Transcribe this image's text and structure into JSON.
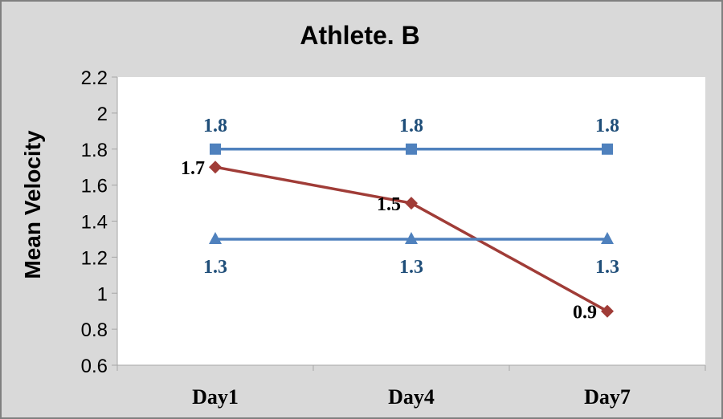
{
  "chart_data": {
    "type": "line",
    "title": "Athlete. B",
    "xlabel": "",
    "ylabel": "Mean Velocity",
    "categories": [
      "Day1",
      "Day4",
      "Day7"
    ],
    "ylim": [
      0.6,
      2.2
    ],
    "yticks": [
      "2.2",
      "2",
      "1.8",
      "1.6",
      "1.4",
      "1.2",
      "1",
      "0.8",
      "0.6"
    ],
    "grid": false,
    "legend": "none",
    "series": [
      {
        "values": [
          1.8,
          1.8,
          1.8
        ],
        "labels": [
          "1.8",
          "1.8",
          "1.8"
        ],
        "marker": "square",
        "color": "#4F81BD",
        "label_color": "#1F4E79",
        "label_position": "above"
      },
      {
        "values": [
          1.7,
          1.5,
          0.9
        ],
        "labels": [
          "1.7",
          "1.5",
          "0.9"
        ],
        "marker": "diamond",
        "color": "#A03C37",
        "label_color": "#000000",
        "label_position": "left"
      },
      {
        "values": [
          1.3,
          1.3,
          1.3
        ],
        "labels": [
          "1.3",
          "1.3",
          "1.3"
        ],
        "marker": "triangle",
        "color": "#4F81BD",
        "label_color": "#1F4E79",
        "label_position": "below"
      }
    ]
  },
  "colors": {
    "chart_area": "#D9D9D9",
    "plot_area": "#FFFFFF",
    "border": "#808080"
  }
}
